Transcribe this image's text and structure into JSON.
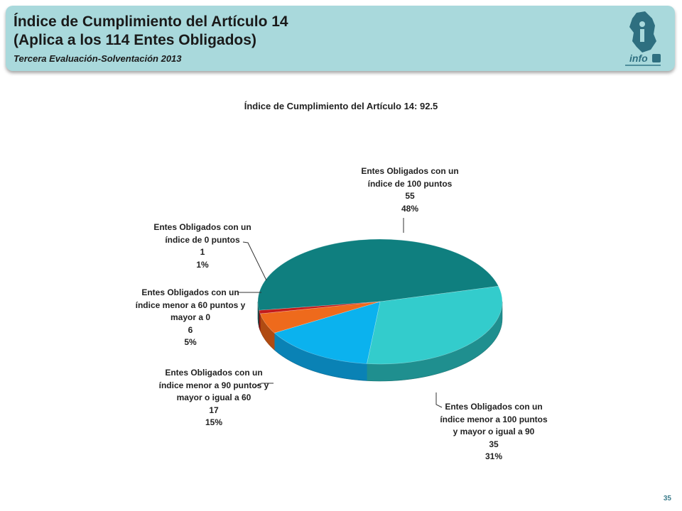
{
  "header": {
    "title_line1": "Índice de Cumplimiento del Artículo 14",
    "title_line2": "(Aplica a los 114 Entes Obligados)",
    "subtitle": "Tercera Evaluación-Solventación 2013",
    "logo_text": "info",
    "logo_icon": "infodf-logo-icon"
  },
  "page_number": "35",
  "chart_data": {
    "type": "pie",
    "title": "Índice de Cumplimiento del Artículo 14: 92.5",
    "slices": [
      {
        "label_lines": [
          "Entes Obligados con un",
          "índice de 100  puntos"
        ],
        "value": 55,
        "percent": "48%",
        "color": "#0f7f7f",
        "side": "#0a5858"
      },
      {
        "label_lines": [
          "Entes Obligados con un",
          "índice  menor a 100  puntos",
          "y mayor o igual a 90"
        ],
        "value": 35,
        "percent": "31%",
        "color": "#33cccc",
        "side": "#1f8f8f"
      },
      {
        "label_lines": [
          "Entes Obligados con un",
          "índice menor a 90 puntos y",
          "mayor o igual a 60"
        ],
        "value": 17,
        "percent": "15%",
        "color": "#0bb2ee",
        "side": "#0a82b5"
      },
      {
        "label_lines": [
          "Entes Obligados con un",
          "índice menor a 60 puntos y",
          "mayor a 0"
        ],
        "value": 6,
        "percent": "5%",
        "color": "#ee6a1c",
        "side": "#b04b12"
      },
      {
        "label_lines": [
          "Entes Obligados con un",
          "índice de 0  puntos"
        ],
        "value": 1,
        "percent": "1%",
        "color": "#c21b1b",
        "side": "#861212"
      }
    ]
  }
}
